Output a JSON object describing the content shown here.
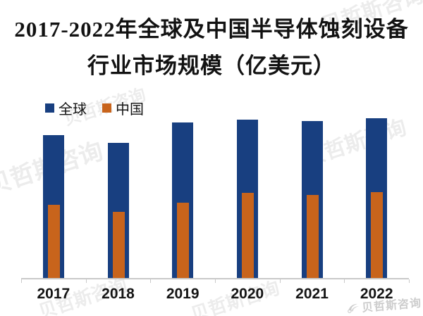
{
  "title": {
    "line1": "2017-2022年全球及中国半导体蚀刻设备",
    "line2": "行业市场规模（亿美元）"
  },
  "legend": {
    "items": [
      {
        "label": "全球",
        "color": "#183f80"
      },
      {
        "label": "中国",
        "color": "#c8641c"
      }
    ]
  },
  "chart_data": {
    "type": "bar",
    "subtype": "overlapped-columns (China bar drawn in front of Global bar, same baseline)",
    "title": "2017-2022年全球及中国半导体蚀刻设备行业市场规模（亿美元）",
    "categories": [
      "2017",
      "2018",
      "2019",
      "2020",
      "2021",
      "2022"
    ],
    "series": [
      {
        "name": "全球",
        "color": "#183f80",
        "values": [
          89.4,
          84.6,
          97.4,
          99.1,
          98.2,
          100.0
        ]
      },
      {
        "name": "中国",
        "color": "#c8641c",
        "values": [
          45.8,
          41.4,
          47.1,
          53.3,
          52.0,
          53.7
        ]
      }
    ],
    "value_units": "relative height, % of tallest bar (no numeric y-axis or data labels shown in chart)",
    "ylabel": "亿美元",
    "xlabel": "",
    "ylim": [
      0,
      100
    ],
    "y_axis_visible": false,
    "gridlines": false,
    "legend_position": "top-left"
  },
  "watermarks": {
    "brand": "贝哲斯咨询",
    "diagonal_text": "贝哲斯咨询"
  },
  "colors": {
    "global_bar": "#183f80",
    "china_bar": "#c8641c",
    "axis": "#c9c9c9",
    "title_text": "#121212",
    "brand_watermark": "#cdcdcd"
  }
}
